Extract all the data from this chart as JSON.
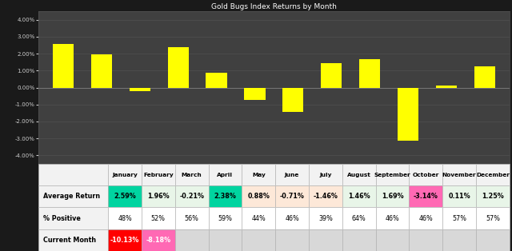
{
  "title": "Gold Bugs Index Returns by Month",
  "months": [
    "January",
    "February",
    "March",
    "April",
    "May",
    "June",
    "July",
    "August",
    "September",
    "October",
    "November",
    "December"
  ],
  "avg_returns": [
    2.59,
    1.96,
    -0.21,
    2.38,
    0.88,
    -0.71,
    -1.46,
    1.46,
    1.69,
    -3.14,
    0.11,
    1.25
  ],
  "pct_positive": [
    48,
    52,
    56,
    59,
    44,
    46,
    39,
    64,
    46,
    46,
    57,
    57
  ],
  "current_month": [
    -10.13,
    -8.18,
    null,
    null,
    null,
    null,
    null,
    null,
    null,
    null,
    null,
    null
  ],
  "bar_color": "#ffff00",
  "chart_bg": "#404040",
  "outer_bg": "#1a1a1a",
  "title_color": "#ffffff",
  "axis_color": "#cccccc",
  "ylim": [
    -4.5,
    4.5
  ],
  "yticks": [
    -4.0,
    -3.0,
    -2.0,
    -1.0,
    0.0,
    1.0,
    2.0,
    3.0,
    4.0
  ],
  "avg_return_colors": [
    "#00d4a0",
    "#e8f5e8",
    "#e8f5e8",
    "#00d4a0",
    "#fde8d8",
    "#fde8d8",
    "#fde8d8",
    "#e8f5e8",
    "#e8f5e8",
    "#ff69b4",
    "#e8f5e8",
    "#e8f5e8"
  ],
  "current_month_colors": [
    "#ff0000",
    "#ff69b4",
    null,
    null,
    null,
    null,
    null,
    null,
    null,
    null,
    null,
    null
  ],
  "table_row1_label": "Average Return",
  "table_row2_label": "% Positive",
  "table_row3_label": "Current Month",
  "table_bg": "#ffffff",
  "table_header_bg": "#f8f8f8",
  "table_label_bg": "#f8f8f8",
  "table_empty_bg": "#d8d8d8"
}
